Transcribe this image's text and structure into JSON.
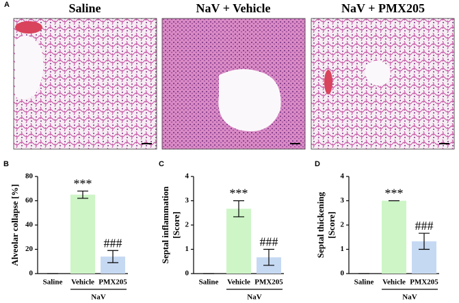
{
  "figure": {
    "panel_a": {
      "label": "A",
      "titles": [
        "Saline",
        "NaV + Vehicle",
        "NaV + PMX205"
      ]
    }
  },
  "chart_data": [
    {
      "type": "bar",
      "panel": "B",
      "ylabel_lines": [
        "Alveolar collapse [%]"
      ],
      "categories": [
        "Saline",
        "Vehicle",
        "PMX205"
      ],
      "group_label": "NaV",
      "values": [
        0,
        65,
        14
      ],
      "errors": [
        0,
        3,
        5
      ],
      "colors": [
        "#ffffff",
        "#cdf5c6",
        "#c6d9f3"
      ],
      "annotations": [
        null,
        "***",
        "###"
      ],
      "ylim": [
        0,
        80
      ],
      "yticks": [
        0,
        20,
        40,
        60,
        80
      ]
    },
    {
      "type": "bar",
      "panel": "C",
      "ylabel_lines": [
        "Septal inflammation",
        "[Score]"
      ],
      "categories": [
        "Saline",
        "Vehicle",
        "PMX205"
      ],
      "group_label": "NaV",
      "values": [
        0,
        2.67,
        0.67
      ],
      "errors": [
        0,
        0.33,
        0.33
      ],
      "colors": [
        "#ffffff",
        "#cdf5c6",
        "#c6d9f3"
      ],
      "annotations": [
        null,
        "***",
        "###"
      ],
      "ylim": [
        0,
        4
      ],
      "yticks": [
        0,
        1,
        2,
        3,
        4
      ]
    },
    {
      "type": "bar",
      "panel": "D",
      "ylabel_lines": [
        "Septal thickening",
        "[Score]"
      ],
      "categories": [
        "Saline",
        "Vehicle",
        "PMX205"
      ],
      "group_label": "NaV",
      "values": [
        0,
        3,
        1.33
      ],
      "errors": [
        0,
        0,
        0.33
      ],
      "colors": [
        "#ffffff",
        "#cdf5c6",
        "#c6d9f3"
      ],
      "annotations": [
        null,
        "***",
        "###"
      ],
      "ylim": [
        0,
        4
      ],
      "yticks": [
        0,
        1,
        2,
        3,
        4
      ]
    }
  ]
}
